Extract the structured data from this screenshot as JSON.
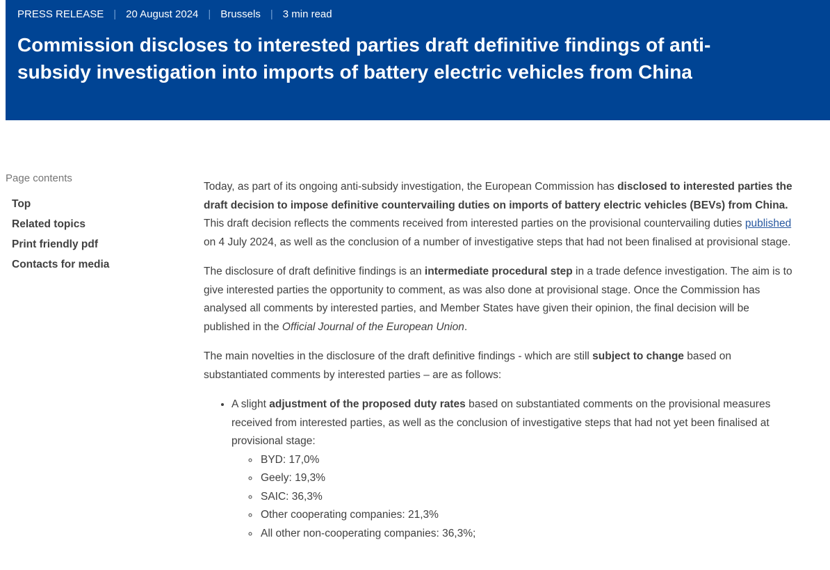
{
  "colors": {
    "brand": "#004494",
    "separator": "#6e9cd2",
    "link": "#2758a0",
    "text": "#404040",
    "muted": "#757575"
  },
  "header": {
    "separator": "|",
    "meta": [
      "PRESS RELEASE",
      "20 August 2024",
      "Brussels",
      "3 min read"
    ],
    "title": "Commission discloses to interested parties draft definitive findings of anti-subsidy investigation into imports of battery electric vehicles from China"
  },
  "sidebar": {
    "label": "Page contents",
    "items": [
      {
        "label": "Top"
      },
      {
        "label": "Related topics"
      },
      {
        "label": "Print friendly pdf"
      },
      {
        "label": "Contacts for media"
      }
    ]
  },
  "article": {
    "paragraphs": [
      {
        "segments": [
          {
            "t": "Today, as part of its ongoing anti-subsidy investigation, the European Commission has "
          },
          {
            "t": "disclosed to interested parties the draft decision to impose definitive countervailing duties on imports of battery electric vehicles (BEVs) from China.",
            "b": true
          },
          {
            "t": " This draft decision reflects the comments received from interested parties on the provisional countervailing duties "
          },
          {
            "t": "published",
            "link": true
          },
          {
            "t": " on 4 July 2024, as well as the conclusion of a number of investigative steps that had not been finalised at provisional stage."
          }
        ]
      },
      {
        "segments": [
          {
            "t": "The disclosure of draft definitive findings is an "
          },
          {
            "t": "intermediate procedural step",
            "b": true
          },
          {
            "t": " in a trade defence investigation. The aim is to give interested parties the opportunity to comment, as was also done at provisional stage. Once the Commission has analysed all comments by interested parties, and Member States have given their opinion, the final decision will be published in the "
          },
          {
            "t": "Official Journal of the European Union",
            "i": true
          },
          {
            "t": "."
          }
        ]
      },
      {
        "segments": [
          {
            "t": "The main novelties in the disclosure of the draft definitive findings - which are still "
          },
          {
            "t": "subject to change",
            "b": true
          },
          {
            "t": " based on substantiated comments by interested parties – are as follows:"
          }
        ]
      }
    ],
    "list": {
      "intro_segments": [
        {
          "t": "A slight "
        },
        {
          "t": "adjustment of the proposed duty rates",
          "b": true
        },
        {
          "t": " based on substantiated comments on the provisional measures received from interested parties, as well as the conclusion of investigative steps that had not yet been finalised at provisional stage:"
        }
      ],
      "sub_items": [
        "BYD: 17,0%",
        "Geely: 19,3%",
        "SAIC: 36,3%",
        "Other cooperating companies: 21,3%",
        "All other non-cooperating companies: 36,3%;"
      ]
    }
  }
}
